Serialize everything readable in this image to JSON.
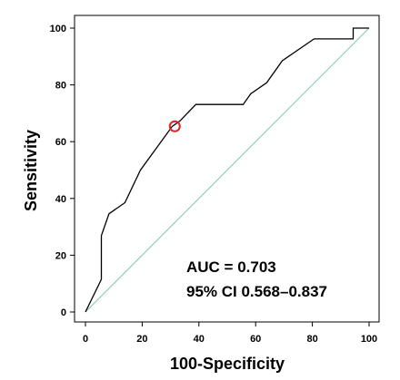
{
  "chart_data": {
    "type": "line",
    "title": "",
    "xlabel": "100-Specificity",
    "ylabel": "Sensitivity",
    "xlim": [
      0,
      100
    ],
    "ylim": [
      0,
      100
    ],
    "x_ticks": [
      "0",
      "20",
      "40",
      "60",
      "80",
      "100"
    ],
    "y_ticks": [
      "0",
      "20",
      "40",
      "60",
      "80",
      "100"
    ],
    "grid": false,
    "legend": "none",
    "series": [
      {
        "color": "#000000",
        "x": [
          0,
          5.6,
          5.6,
          8.3,
          13.9,
          19.4,
          25,
          30.6,
          33.3,
          38.9,
          55.6,
          58.3,
          63.9,
          69.4,
          80.6,
          94.4,
          94.4,
          100,
          100
        ],
        "y": [
          0,
          11.5,
          26.9,
          34.6,
          38.5,
          50,
          57.7,
          65.4,
          67.3,
          73.1,
          73.1,
          76.9,
          80.8,
          88.5,
          96.2,
          96.2,
          100,
          100,
          100
        ]
      },
      {
        "color": "#7fc7b5",
        "x": [
          0,
          100
        ],
        "y": [
          0,
          100
        ]
      }
    ],
    "marker": {
      "x": 31.5,
      "y": 65.4,
      "color": "#dd2222"
    },
    "annotations": [
      "AUC = 0.703",
      "95% CI 0.568–0.837"
    ]
  }
}
